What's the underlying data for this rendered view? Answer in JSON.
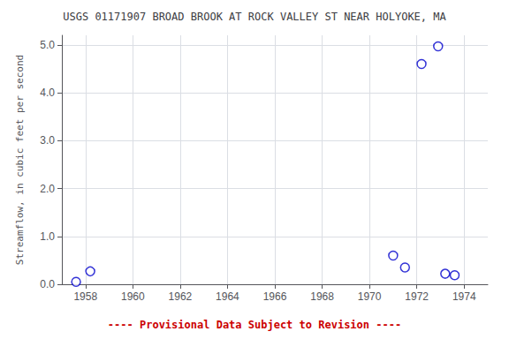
{
  "chart_data": {
    "type": "scatter",
    "title": "USGS 01171907 BROAD BROOK AT ROCK VALLEY ST NEAR HOLYOKE, MA",
    "ylabel": "Streamflow, in cubic feet per second",
    "annotations": [
      {
        "text": "---- Provisional Data Subject to Revision ----",
        "color": "#cc0000"
      }
    ],
    "x": [
      1957.6,
      1958.2,
      1971.0,
      1971.5,
      1972.2,
      1972.9,
      1973.2,
      1973.6
    ],
    "values": [
      0.05,
      0.27,
      0.6,
      0.35,
      4.6,
      4.97,
      0.22,
      0.19
    ],
    "color": "#0000cc",
    "marker": "open circle",
    "xlim": [
      1957.0,
      1975.0
    ],
    "ylim": [
      0.0,
      5.2
    ],
    "xticks": [
      1958,
      1960,
      1962,
      1964,
      1966,
      1968,
      1970,
      1972,
      1974
    ],
    "yticks": [
      {
        "value": 0.0,
        "label": "0.0"
      },
      {
        "value": 1.0,
        "label": "1.0"
      },
      {
        "value": 2.0,
        "label": "2.0"
      },
      {
        "value": 3.0,
        "label": "3.0"
      },
      {
        "value": 4.0,
        "label": "4.0"
      },
      {
        "value": 5.0,
        "label": "5.0"
      }
    ],
    "grid": true
  }
}
